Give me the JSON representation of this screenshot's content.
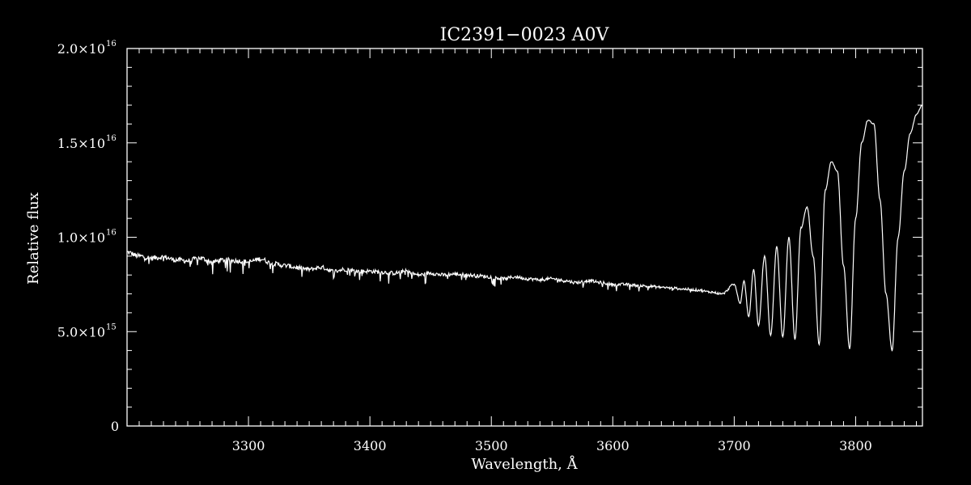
{
  "chart_data": {
    "type": "line",
    "title": "IC2391−0023  A0V",
    "xlabel": "Wavelength, Å",
    "ylabel": "Relative flux",
    "xlim": [
      3200,
      3855
    ],
    "ylim": [
      0,
      2e+16
    ],
    "grid": false,
    "x_ticks": [
      {
        "value": 3300,
        "label": "3300"
      },
      {
        "value": 3400,
        "label": "3400"
      },
      {
        "value": 3500,
        "label": "3500"
      },
      {
        "value": 3600,
        "label": "3600"
      },
      {
        "value": 3700,
        "label": "3700"
      },
      {
        "value": 3800,
        "label": "3800"
      }
    ],
    "y_ticks": [
      {
        "value": 0,
        "mantissa": "0",
        "exponent": ""
      },
      {
        "value": 5000000000000000.0,
        "mantissa": "5.0×10",
        "exponent": "15"
      },
      {
        "value": 1e+16,
        "mantissa": "1.0×10",
        "exponent": "16"
      },
      {
        "value": 1.5e+16,
        "mantissa": "1.5×10",
        "exponent": "16"
      },
      {
        "value": 2e+16,
        "mantissa": "2.0×10",
        "exponent": "16"
      }
    ],
    "series": [
      {
        "color": "#ffffff",
        "x": [
          3200,
          3210,
          3220,
          3230,
          3240,
          3250,
          3260,
          3270,
          3280,
          3290,
          3300,
          3310,
          3320,
          3330,
          3340,
          3350,
          3360,
          3370,
          3380,
          3390,
          3400,
          3410,
          3420,
          3430,
          3440,
          3450,
          3460,
          3470,
          3480,
          3490,
          3500,
          3510,
          3520,
          3530,
          3540,
          3550,
          3560,
          3570,
          3580,
          3590,
          3600,
          3610,
          3620,
          3630,
          3640,
          3650,
          3660,
          3670,
          3680,
          3690,
          3700,
          3705,
          3708,
          3712,
          3716,
          3720,
          3725,
          3730,
          3735,
          3740,
          3745,
          3750,
          3755,
          3760,
          3765,
          3770,
          3775,
          3780,
          3785,
          3790,
          3795,
          3800,
          3805,
          3810,
          3815,
          3820,
          3825,
          3830,
          3835,
          3840,
          3845,
          3850,
          3855
        ],
        "y": [
          9200000000000000.0,
          9000000000000000.0,
          8900000000000000.0,
          8950000000000000.0,
          8800000000000000.0,
          8750000000000000.0,
          8900000000000000.0,
          8700000000000000.0,
          8800000000000000.0,
          8750000000000000.0,
          8700000000000000.0,
          8850000000000000.0,
          8600000000000000.0,
          8500000000000000.0,
          8400000000000000.0,
          8300000000000000.0,
          8400000000000000.0,
          8200000000000000.0,
          8300000000000000.0,
          8200000000000000.0,
          8200000000000000.0,
          8150000000000000.0,
          8100000000000000.0,
          8200000000000000.0,
          8000000000000000.0,
          8100000000000000.0,
          8000000000000000.0,
          8050000000000000.0,
          8000000000000000.0,
          7950000000000000.0,
          7900000000000000.0,
          7800000000000000.0,
          7900000000000000.0,
          7800000000000000.0,
          7750000000000000.0,
          7800000000000000.0,
          7700000000000000.0,
          7600000000000000.0,
          7700000000000000.0,
          7600000000000000.0,
          7500000000000000.0,
          7500000000000000.0,
          7450000000000000.0,
          7400000000000000.0,
          7350000000000000.0,
          7300000000000000.0,
          7250000000000000.0,
          7200000000000000.0,
          7100000000000000.0,
          7000000000000000.0,
          7500000000000000.0,
          6500000000000000.0,
          7700000000000000.0,
          5800000000000000.0,
          8300000000000000.0,
          5300000000000000.0,
          9000000000000000.0,
          4800000000000000.0,
          9500000000000000.0,
          4700000000000000.0,
          1e+16,
          4600000000000000.0,
          1.05e+16,
          1.16e+16,
          9000000000000000.0,
          4300000000000000.0,
          1.25e+16,
          1.4e+16,
          1.35e+16,
          8500000000000000.0,
          4100000000000000.0,
          1.1e+16,
          1.5e+16,
          1.62e+16,
          1.6e+16,
          1.2e+16,
          7000000000000000.0,
          4000000000000000.0,
          1e+16,
          1.35e+16,
          1.55e+16,
          1.65e+16,
          1.7e+16
        ]
      }
    ]
  }
}
